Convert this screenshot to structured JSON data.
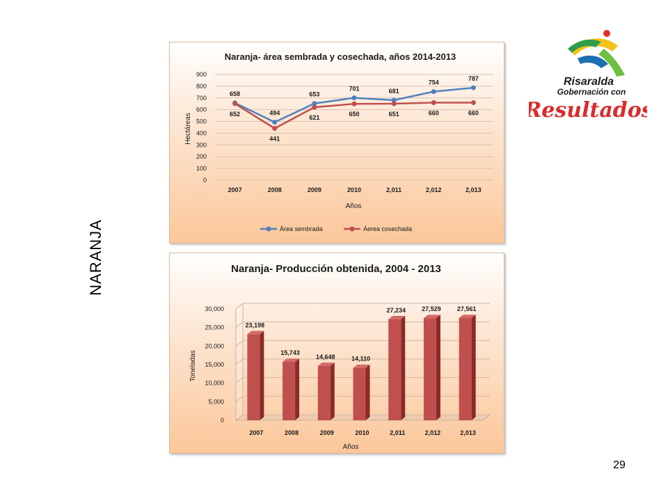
{
  "page": {
    "side_title": "NARANJA",
    "page_number": "29"
  },
  "logo": {
    "line1": "Risaralda",
    "line2": "Gobernación con",
    "line3": "Resultados"
  },
  "colors": {
    "blue_series": "#4f81bd",
    "red_series": "#c0504d",
    "bar_front": "#c0504d",
    "bar_side": "#8b2a28",
    "bar_top": "#d46a67"
  },
  "chart_data": [
    {
      "type": "line",
      "title": "Naranja- área sembrada y cosechada, años 2014-2013",
      "xlabel": "Años",
      "ylabel": "Hectáreas",
      "categories": [
        "2007",
        "2008",
        "2009",
        "2010",
        "2,011",
        "2,012",
        "2,013"
      ],
      "yticks": [
        "0",
        "100",
        "200",
        "300",
        "400",
        "500",
        "600",
        "700",
        "800",
        "900"
      ],
      "ylim": [
        0,
        900
      ],
      "grid": true,
      "legend": "bottom",
      "series": [
        {
          "name": "Área sembrada",
          "values": [
            658,
            494,
            653,
            701,
            681,
            754,
            787
          ]
        },
        {
          "name": "Áerea cosechada",
          "values": [
            652,
            441,
            621,
            650,
            651,
            660,
            660
          ]
        }
      ]
    },
    {
      "type": "bar",
      "title": "Naranja- Producción obtenida, 2004 - 2013",
      "xlabel": "Años",
      "ylabel": "Toneladas",
      "categories": [
        "2007",
        "2008",
        "2009",
        "2010",
        "2,011",
        "2,012",
        "2,013"
      ],
      "values": [
        23198,
        15743,
        14648,
        14110,
        27234,
        27529,
        27561
      ],
      "value_labels": [
        "23,198",
        "15,743",
        "14,648",
        "14,110",
        "27,234",
        "27,529",
        "27,561"
      ],
      "yticks": [
        "0",
        "5,000",
        "10,000",
        "15,000",
        "20,000",
        "25,000",
        "30,000"
      ],
      "ylim": [
        0,
        30000
      ],
      "grid": true,
      "legend": "none"
    }
  ]
}
